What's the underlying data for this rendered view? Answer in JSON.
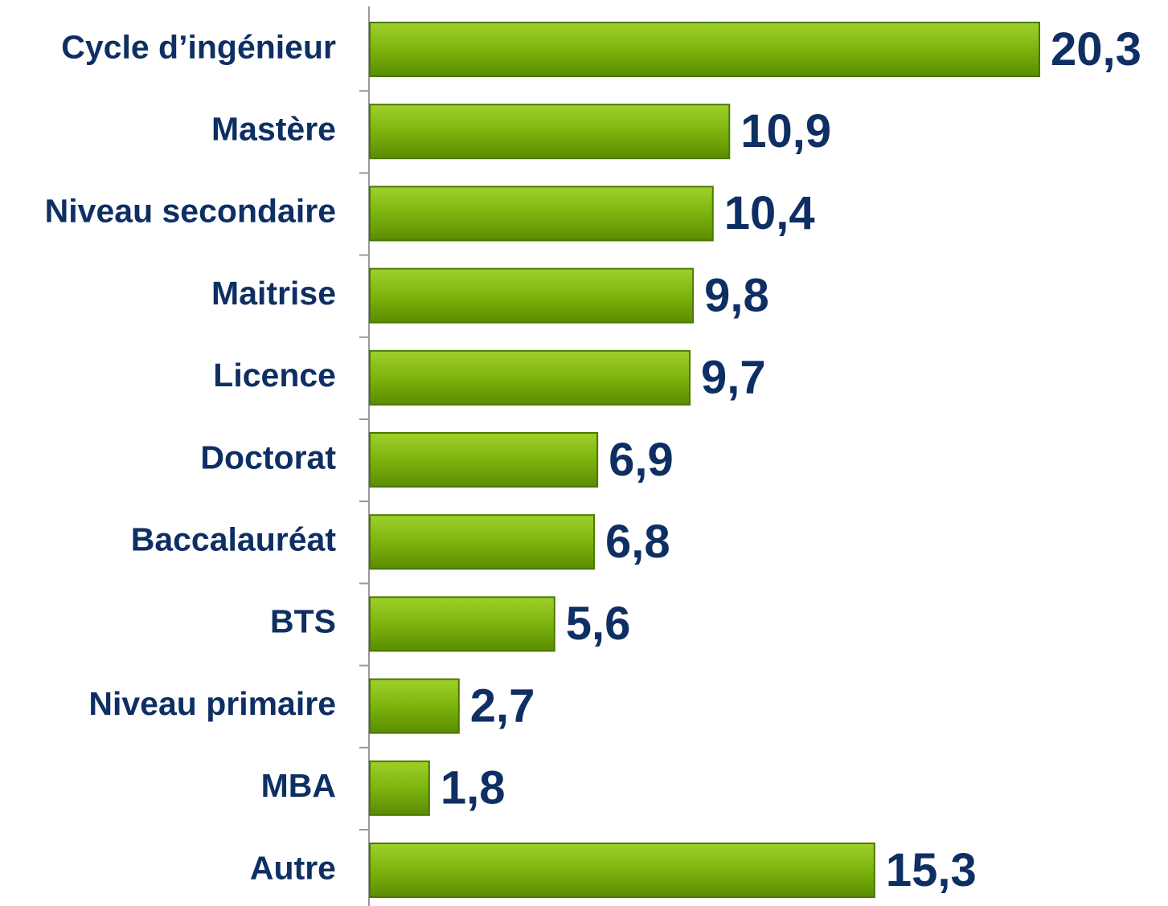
{
  "chart_data": {
    "type": "hbar",
    "categories": [
      "Cycle d’ingénieur",
      "Mastère",
      "Niveau secondaire",
      "Maitrise",
      "Licence",
      "Doctorat",
      "Baccalauréat",
      "BTS",
      "Niveau primaire",
      "MBA",
      "Autre"
    ],
    "values": [
      20.3,
      10.9,
      10.4,
      9.8,
      9.7,
      6.9,
      6.8,
      5.6,
      2.7,
      1.8,
      15.3
    ],
    "value_labels": [
      "20,3",
      "10,9",
      "10,4",
      "9,8",
      "9,7",
      "6,9",
      "6,8",
      "5,6",
      "2,7",
      "1,8",
      "15,3"
    ],
    "color": "#6fa30a",
    "label_color": "#0e2f63"
  }
}
